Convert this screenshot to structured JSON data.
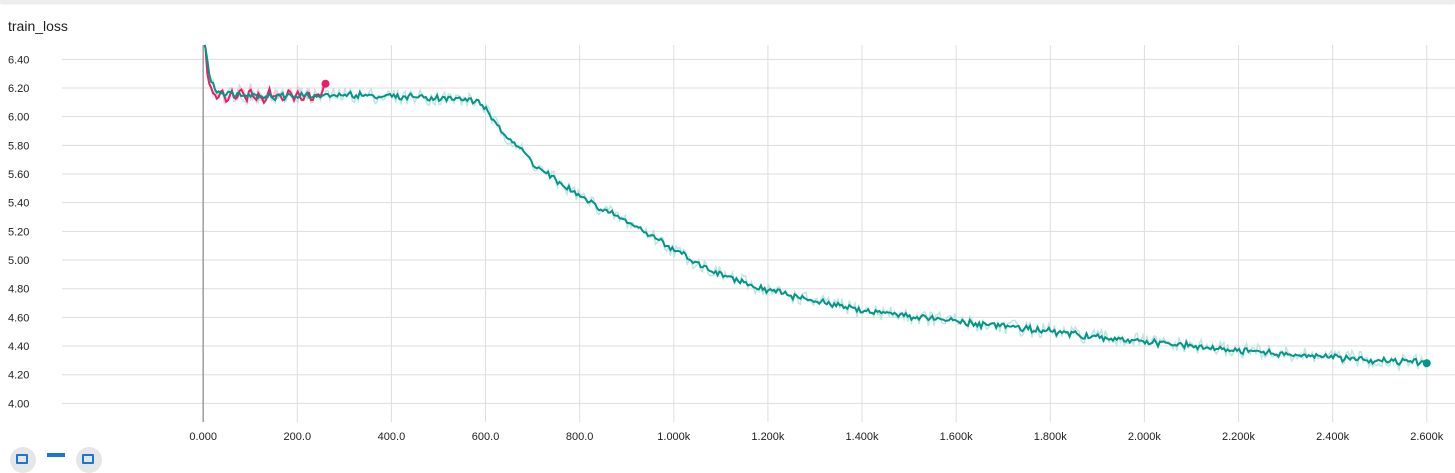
{
  "card": {
    "title": "train_loss"
  },
  "toolbar": {
    "fullscreen_icon": "expand-icon",
    "log_scale_icon": "dash-icon",
    "fit_domain_icon": "fit-domain-icon"
  },
  "chart_data": {
    "type": "line",
    "title": "train_loss",
    "xlabel": "",
    "ylabel": "",
    "xlim": [
      -300,
      2660
    ],
    "ylim": [
      3.87,
      6.5
    ],
    "grid": true,
    "legend": "none",
    "x_ticks": [
      0,
      200,
      400,
      600,
      800,
      1000,
      1200,
      1400,
      1600,
      1800,
      2000,
      2200,
      2400,
      2600
    ],
    "x_tick_labels": [
      "0.000",
      "200.0",
      "400.0",
      "600.0",
      "800.0",
      "1.000k",
      "1.200k",
      "1.400k",
      "1.600k",
      "1.800k",
      "2.000k",
      "2.200k",
      "2.400k",
      "2.600k"
    ],
    "y_ticks": [
      4.0,
      4.2,
      4.4,
      4.6,
      4.8,
      5.0,
      5.2,
      5.4,
      5.6,
      5.8,
      6.0,
      6.2,
      6.4
    ],
    "y_tick_labels": [
      "4.00",
      "4.20",
      "4.40",
      "4.60",
      "4.80",
      "5.00",
      "5.20",
      "5.40",
      "5.60",
      "5.80",
      "6.00",
      "6.20",
      "6.40"
    ],
    "series": [
      {
        "color": "#e91e63",
        "raw_color": "#f8bbd0",
        "x": [
          5,
          10,
          20,
          30,
          40,
          50,
          60,
          70,
          80,
          90,
          100,
          110,
          120,
          130,
          140,
          150,
          160,
          170,
          180,
          190,
          200,
          210,
          220,
          230,
          240,
          250,
          260
        ],
        "values": [
          6.48,
          6.25,
          6.18,
          6.12,
          6.2,
          6.1,
          6.17,
          6.13,
          6.18,
          6.11,
          6.19,
          6.12,
          6.16,
          6.1,
          6.2,
          6.12,
          6.17,
          6.1,
          6.19,
          6.13,
          6.16,
          6.11,
          6.18,
          6.12,
          6.15,
          6.14,
          6.23
        ]
      },
      {
        "color": "#009688",
        "raw_color": "#b2dfdb",
        "x": [
          5,
          15,
          30,
          60,
          100,
          150,
          200,
          250,
          300,
          350,
          400,
          450,
          500,
          550,
          590,
          620,
          660,
          700,
          750,
          800,
          850,
          900,
          950,
          1000,
          1050,
          1100,
          1150,
          1200,
          1250,
          1300,
          1350,
          1400,
          1450,
          1500,
          1550,
          1600,
          1650,
          1700,
          1750,
          1800,
          1850,
          1900,
          1950,
          2000,
          2050,
          2100,
          2150,
          2200,
          2250,
          2300,
          2350,
          2400,
          2450,
          2500,
          2550,
          2600
        ],
        "values": [
          6.48,
          6.25,
          6.18,
          6.16,
          6.15,
          6.14,
          6.15,
          6.14,
          6.15,
          6.15,
          6.14,
          6.14,
          6.13,
          6.12,
          6.1,
          5.95,
          5.82,
          5.68,
          5.55,
          5.45,
          5.35,
          5.27,
          5.18,
          5.07,
          4.98,
          4.9,
          4.84,
          4.79,
          4.75,
          4.71,
          4.68,
          4.65,
          4.63,
          4.61,
          4.59,
          4.57,
          4.55,
          4.54,
          4.52,
          4.5,
          4.48,
          4.46,
          4.45,
          4.43,
          4.41,
          4.4,
          4.38,
          4.37,
          4.36,
          4.34,
          4.33,
          4.32,
          4.31,
          4.3,
          4.29,
          4.28
        ]
      }
    ]
  }
}
